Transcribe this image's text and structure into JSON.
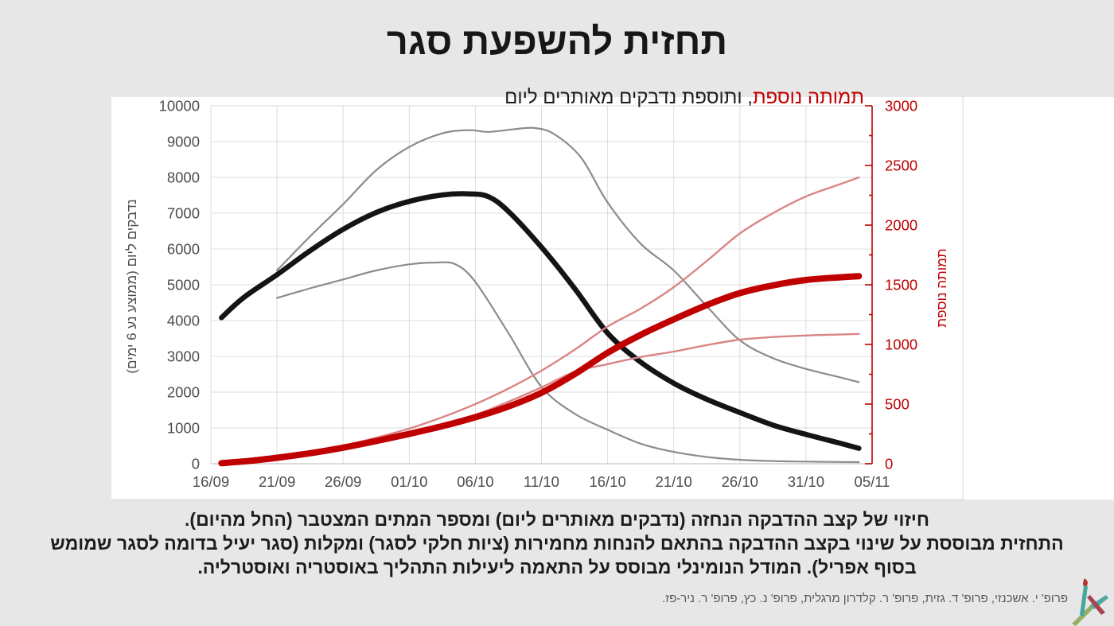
{
  "title": "תחזית להשפעת סגר",
  "subtitle": {
    "highlight": "תמותה נוספת",
    "rest": ", ותוספת נדבקים מאותרים ליום"
  },
  "footer": {
    "lines": [
      "חיזוי של קצב ההדבקה הנחזה (נדבקים מאותרים ליום) ומספר המתים המצטבר (החל מהיום).",
      "התחזית מבוססת על שינוי בקצב ההדבקה בהתאם להנחות מחמירות (ציות חלקי לסגר) ומקלות (סגר יעיל בדומה לסגר שמומש",
      "בסוף אפריל). המודל הנומינלי מבוסס על התאמה ליעילות התהליך באוסטריה ואוסטרליה."
    ]
  },
  "credits": "פרופ' י. אשכנזי, פרופ' ד. גזית, פרופ' ר. קלדרון מרגלית, פרופ' נ. כץ, פרופ' ר. ניר-פז.",
  "logo": {
    "name": "torch-aleph-logo"
  },
  "colors": {
    "background": "#e8e7e7",
    "panel": "#ffffff",
    "grid": "#dcdcdc",
    "frame": "#d9d9d9",
    "axis_bottom": "#c6c6c6",
    "axis_text": "#4d4d4d",
    "accent_red": "#c00000",
    "bound_pink": "#d98585",
    "bound_gray": "#8c8c8c",
    "line_black": "#141414"
  },
  "chart_data": {
    "type": "line",
    "title": "תמותה נוספת, ותוספת נדבקים מאותרים ליום",
    "x_tick_labels": [
      "16/09",
      "21/09",
      "26/09",
      "01/10",
      "06/10",
      "11/10",
      "16/10",
      "21/10",
      "26/10",
      "31/10",
      "05/11"
    ],
    "x_range_days": [
      0,
      50
    ],
    "grid": true,
    "left_axis": {
      "label": "נדבקים ליום (ממוצע נע 6 ימים)",
      "min": 0,
      "max": 10000,
      "step": 1000
    },
    "right_axis": {
      "label": "תמותה נוספת",
      "min": 0,
      "max": 3000,
      "step": 500,
      "minor_step": 250
    },
    "series": [
      {
        "name": "infections-upper-bound",
        "axis": "left",
        "color": "#8c8c8c",
        "width": 2.2,
        "points": [
          [
            5,
            5400
          ],
          [
            7.5,
            6350
          ],
          [
            10,
            7250
          ],
          [
            12.5,
            8200
          ],
          [
            15,
            8850
          ],
          [
            17.5,
            9230
          ],
          [
            19.5,
            9320
          ],
          [
            21,
            9270
          ],
          [
            23,
            9350
          ],
          [
            24.5,
            9380
          ],
          [
            26,
            9200
          ],
          [
            28,
            8550
          ],
          [
            30,
            7300
          ],
          [
            32.5,
            6150
          ],
          [
            35,
            5400
          ],
          [
            37.5,
            4400
          ],
          [
            40,
            3450
          ],
          [
            42.5,
            2950
          ],
          [
            45,
            2650
          ],
          [
            47.5,
            2420
          ],
          [
            49,
            2280
          ]
        ]
      },
      {
        "name": "infections-lower-bound",
        "axis": "left",
        "color": "#8c8c8c",
        "width": 2.2,
        "points": [
          [
            5,
            4630
          ],
          [
            7.5,
            4900
          ],
          [
            10,
            5150
          ],
          [
            12.5,
            5400
          ],
          [
            15,
            5570
          ],
          [
            17,
            5620
          ],
          [
            18.5,
            5570
          ],
          [
            20,
            5080
          ],
          [
            22.5,
            3650
          ],
          [
            25,
            2150
          ],
          [
            27.5,
            1400
          ],
          [
            30,
            950
          ],
          [
            32.5,
            560
          ],
          [
            35,
            330
          ],
          [
            37.5,
            190
          ],
          [
            40,
            110
          ],
          [
            42.5,
            75
          ],
          [
            45,
            60
          ],
          [
            47.5,
            50
          ],
          [
            49,
            45
          ]
        ]
      },
      {
        "name": "infections-forecast",
        "axis": "left",
        "color": "#141414",
        "width": 6.5,
        "points": [
          [
            0.8,
            4080
          ],
          [
            2.5,
            4650
          ],
          [
            5,
            5280
          ],
          [
            7.5,
            5950
          ],
          [
            10,
            6550
          ],
          [
            12.5,
            7020
          ],
          [
            15,
            7330
          ],
          [
            17.5,
            7510
          ],
          [
            19.5,
            7540
          ],
          [
            21,
            7460
          ],
          [
            22.5,
            7050
          ],
          [
            25,
            6050
          ],
          [
            27.5,
            4900
          ],
          [
            30,
            3650
          ],
          [
            32.5,
            2840
          ],
          [
            35,
            2250
          ],
          [
            37.5,
            1800
          ],
          [
            40,
            1430
          ],
          [
            42.5,
            1080
          ],
          [
            45,
            820
          ],
          [
            47.5,
            580
          ],
          [
            49,
            430
          ]
        ]
      },
      {
        "name": "mortality-upper-bound",
        "axis": "right",
        "color": "#d98585",
        "width": 2.4,
        "points": [
          [
            0.8,
            5
          ],
          [
            3,
            28
          ],
          [
            5,
            58
          ],
          [
            7.5,
            100
          ],
          [
            10,
            152
          ],
          [
            12.5,
            218
          ],
          [
            15,
            295
          ],
          [
            17.5,
            390
          ],
          [
            20,
            500
          ],
          [
            22.5,
            630
          ],
          [
            25,
            780
          ],
          [
            27.5,
            955
          ],
          [
            30,
            1150
          ],
          [
            32.5,
            1300
          ],
          [
            35,
            1480
          ],
          [
            37.5,
            1700
          ],
          [
            40,
            1930
          ],
          [
            42.5,
            2100
          ],
          [
            45,
            2240
          ],
          [
            47.5,
            2340
          ],
          [
            49,
            2400
          ]
        ]
      },
      {
        "name": "mortality-lower-bound",
        "axis": "right",
        "color": "#d98585",
        "width": 2.4,
        "points": [
          [
            0.8,
            5
          ],
          [
            3,
            24
          ],
          [
            5,
            52
          ],
          [
            7.5,
            92
          ],
          [
            10,
            140
          ],
          [
            12.5,
            198
          ],
          [
            15,
            262
          ],
          [
            17.5,
            332
          ],
          [
            20,
            410
          ],
          [
            22.5,
            520
          ],
          [
            25,
            640
          ],
          [
            27.5,
            770
          ],
          [
            30,
            835
          ],
          [
            32.5,
            895
          ],
          [
            35,
            940
          ],
          [
            37.5,
            995
          ],
          [
            40,
            1040
          ],
          [
            42.5,
            1062
          ],
          [
            45,
            1075
          ],
          [
            47.5,
            1083
          ],
          [
            49,
            1088
          ]
        ]
      },
      {
        "name": "added-mortality-forecast",
        "axis": "right",
        "color": "#c00000",
        "width": 8,
        "points": [
          [
            0.8,
            5
          ],
          [
            3,
            25
          ],
          [
            5,
            50
          ],
          [
            7.5,
            88
          ],
          [
            10,
            135
          ],
          [
            12.5,
            190
          ],
          [
            15,
            250
          ],
          [
            17.5,
            315
          ],
          [
            20,
            390
          ],
          [
            22.5,
            480
          ],
          [
            25,
            595
          ],
          [
            27.5,
            750
          ],
          [
            30,
            930
          ],
          [
            32.5,
            1080
          ],
          [
            35,
            1210
          ],
          [
            37.5,
            1330
          ],
          [
            40,
            1430
          ],
          [
            42.5,
            1495
          ],
          [
            45,
            1540
          ],
          [
            47.5,
            1562
          ],
          [
            49,
            1572
          ]
        ]
      }
    ]
  }
}
